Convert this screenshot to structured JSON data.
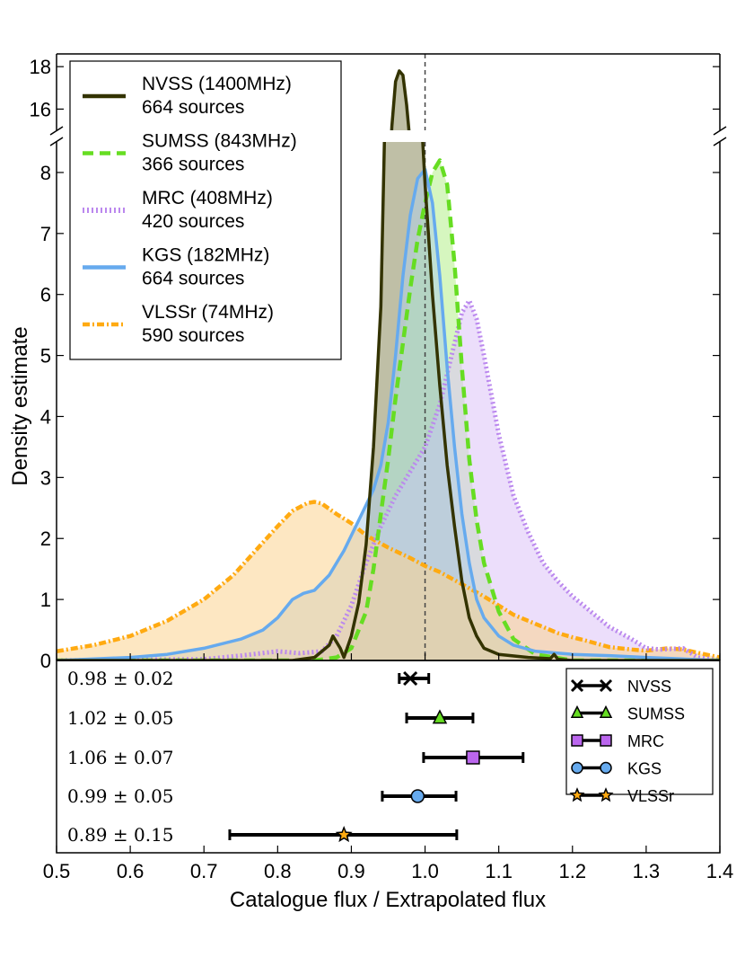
{
  "chart_data": {
    "type": "line",
    "subtype": "density-estimate with broken y-axis and error-bar panel",
    "xlabel": "Catalogue flux / Extrapolated flux",
    "ylabel": "Density estimate",
    "xlim": [
      0.5,
      1.4
    ],
    "ylim_lower": [
      0,
      8.5
    ],
    "ylim_upper": [
      15.0,
      18.6
    ],
    "x_ticks": [
      "0.5",
      "0.6",
      "0.7",
      "0.8",
      "0.9",
      "1.0",
      "1.1",
      "1.2",
      "1.3",
      "1.4"
    ],
    "y_ticks_lower": [
      "0",
      "1",
      "2",
      "3",
      "4",
      "5",
      "6",
      "7",
      "8"
    ],
    "y_ticks_upper": [
      "16",
      "18"
    ],
    "reference_line_x": 1.0,
    "series": [
      {
        "name": "NVSS (1400MHz)",
        "sources": "664 sources",
        "color": "#333300",
        "fill": "#8a8a5c",
        "style": "solid",
        "x": [
          0.5,
          0.82,
          0.85,
          0.87,
          0.875,
          0.885,
          0.89,
          0.9,
          0.91,
          0.92,
          0.93,
          0.94,
          0.945,
          0.95,
          0.955,
          0.96,
          0.965,
          0.97,
          0.975,
          0.98,
          0.985,
          0.99,
          0.995,
          1.0,
          1.005,
          1.01,
          1.02,
          1.03,
          1.04,
          1.05,
          1.06,
          1.07,
          1.08,
          1.1,
          1.14,
          1.17,
          1.175,
          1.18,
          1.2,
          1.4
        ],
        "values": [
          0,
          0,
          0.05,
          0.25,
          0.4,
          0.2,
          0.05,
          0.4,
          0.95,
          1.9,
          3.5,
          5.8,
          8.6,
          11.8,
          15.2,
          17.3,
          17.8,
          17.6,
          16.2,
          14.3,
          12.5,
          10.5,
          8.9,
          7.8,
          6.9,
          6.0,
          4.5,
          3.2,
          2.2,
          1.3,
          0.7,
          0.4,
          0.2,
          0.1,
          0.05,
          0.03,
          0.1,
          0.02,
          0,
          0
        ]
      },
      {
        "name": "SUMSS (843MHz)",
        "sources": "366 sources",
        "color": "#66dd22",
        "fill": "#b5ef8a",
        "style": "dashed",
        "x": [
          0.5,
          0.85,
          0.88,
          0.9,
          0.92,
          0.93,
          0.94,
          0.95,
          0.96,
          0.97,
          0.98,
          0.99,
          1.0,
          1.01,
          1.02,
          1.03,
          1.04,
          1.05,
          1.06,
          1.07,
          1.08,
          1.1,
          1.12,
          1.15,
          1.2,
          1.4
        ],
        "values": [
          0,
          0,
          0.05,
          0.2,
          0.8,
          1.5,
          2.4,
          3.3,
          4.3,
          5.2,
          6.1,
          6.9,
          7.5,
          8.0,
          8.2,
          7.8,
          6.5,
          4.8,
          3.3,
          2.3,
          1.6,
          0.8,
          0.35,
          0.1,
          0,
          0
        ]
      },
      {
        "name": "MRC (408MHz)",
        "sources": "420 sources",
        "color": "#bb88ee",
        "fill": "#ddc2f7",
        "style": "dotted",
        "x": [
          0.5,
          0.7,
          0.75,
          0.8,
          0.83,
          0.86,
          0.88,
          0.9,
          0.92,
          0.94,
          0.96,
          0.98,
          1.0,
          1.02,
          1.04,
          1.05,
          1.06,
          1.07,
          1.08,
          1.1,
          1.12,
          1.14,
          1.16,
          1.18,
          1.2,
          1.22,
          1.25,
          1.28,
          1.3,
          1.32,
          1.35,
          1.37,
          1.4
        ],
        "values": [
          0,
          0.02,
          0.08,
          0.15,
          0.12,
          0.15,
          0.4,
          0.9,
          1.6,
          2.2,
          2.7,
          3.1,
          3.5,
          4.2,
          5.2,
          5.7,
          5.9,
          5.6,
          5.0,
          3.7,
          2.7,
          2.1,
          1.6,
          1.3,
          1.05,
          0.85,
          0.55,
          0.35,
          0.2,
          0.18,
          0.2,
          0.05,
          0
        ]
      },
      {
        "name": "KGS (182MHz)",
        "sources": "664 sources",
        "color": "#66aaee",
        "fill": "#b0cfe8",
        "style": "solid",
        "x": [
          0.5,
          0.6,
          0.65,
          0.7,
          0.75,
          0.78,
          0.8,
          0.82,
          0.835,
          0.85,
          0.87,
          0.89,
          0.91,
          0.93,
          0.94,
          0.95,
          0.96,
          0.97,
          0.98,
          0.99,
          1.0,
          1.01,
          1.02,
          1.03,
          1.04,
          1.05,
          1.06,
          1.07,
          1.08,
          1.1,
          1.12,
          1.15,
          1.2,
          1.25,
          1.3,
          1.4
        ],
        "values": [
          0,
          0.05,
          0.1,
          0.2,
          0.35,
          0.5,
          0.7,
          1.0,
          1.1,
          1.15,
          1.4,
          1.8,
          2.3,
          2.8,
          3.2,
          3.9,
          5.0,
          6.3,
          7.3,
          7.9,
          8.05,
          7.5,
          6.3,
          4.8,
          3.5,
          2.4,
          1.6,
          1.0,
          0.7,
          0.4,
          0.25,
          0.15,
          0.1,
          0.08,
          0.05,
          0
        ]
      },
      {
        "name": "VLSSr (74MHz)",
        "sources": "590 sources",
        "color": "#ffaa11",
        "fill": "#fcd48f",
        "style": "dashdot",
        "x": [
          0.5,
          0.55,
          0.6,
          0.65,
          0.7,
          0.74,
          0.77,
          0.8,
          0.82,
          0.84,
          0.85,
          0.86,
          0.88,
          0.9,
          0.92,
          0.95,
          0.98,
          1.0,
          1.02,
          1.05,
          1.08,
          1.1,
          1.12,
          1.15,
          1.18,
          1.2,
          1.22,
          1.25,
          1.28,
          1.3,
          1.33,
          1.35,
          1.38,
          1.4
        ],
        "values": [
          0.15,
          0.25,
          0.4,
          0.65,
          1.0,
          1.4,
          1.8,
          2.2,
          2.45,
          2.58,
          2.6,
          2.57,
          2.4,
          2.25,
          2.05,
          1.85,
          1.68,
          1.55,
          1.45,
          1.25,
          1.05,
          0.9,
          0.75,
          0.6,
          0.45,
          0.38,
          0.32,
          0.22,
          0.18,
          0.16,
          0.2,
          0.18,
          0.1,
          0.05
        ]
      }
    ],
    "summary_panel": {
      "rows": [
        {
          "catalogue": "NVSS",
          "median": 0.98,
          "error": 0.02,
          "lo": 0.965,
          "hi": 1.005,
          "marker": "x",
          "color": "#000000",
          "label": "0.98 ± 0.02"
        },
        {
          "catalogue": "SUMSS",
          "median": 1.02,
          "error": 0.05,
          "lo": 0.975,
          "hi": 1.065,
          "marker": "triangle",
          "color": "#66dd22",
          "label": "1.02 ± 0.05"
        },
        {
          "catalogue": "MRC",
          "median": 1.065,
          "error": 0.07,
          "lo": 0.998,
          "hi": 1.133,
          "marker": "square",
          "color": "#bb66ee",
          "label": "1.06 ± 0.07"
        },
        {
          "catalogue": "KGS",
          "median": 0.99,
          "error": 0.05,
          "lo": 0.942,
          "hi": 1.042,
          "marker": "circle",
          "color": "#66aaee",
          "label": "0.99 ± 0.05"
        },
        {
          "catalogue": "VLSSr",
          "median": 0.89,
          "error": 0.15,
          "lo": 0.735,
          "hi": 1.043,
          "marker": "star",
          "color": "#ffaa11",
          "label": "0.89 ± 0.15"
        }
      ]
    }
  }
}
